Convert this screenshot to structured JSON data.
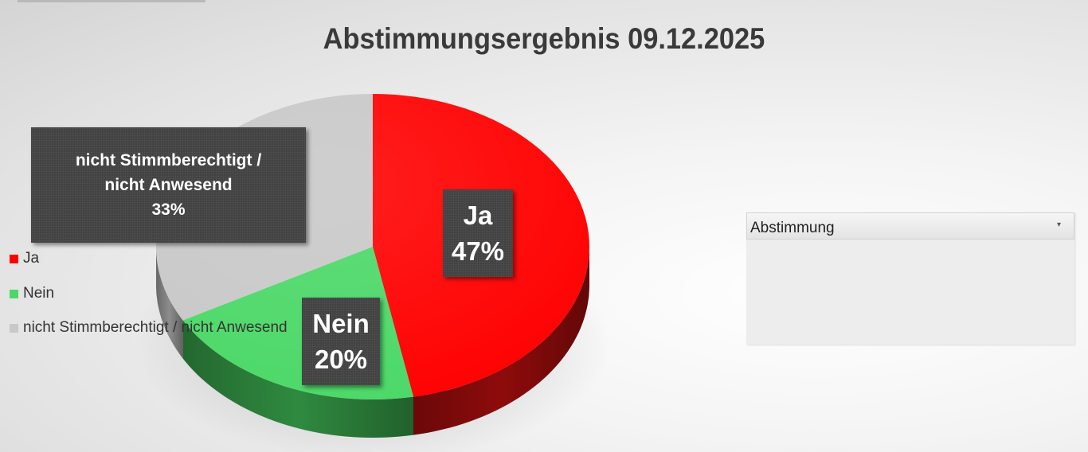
{
  "chart_data": {
    "type": "pie",
    "title": "Abstimmungsergebnis 09.12.2025",
    "slices": [
      {
        "name": "Ja",
        "value": 47,
        "label": "47%",
        "color": "#ff0000",
        "side": "#8e0b0b"
      },
      {
        "name": "Nein",
        "value": 20,
        "label": "20%",
        "color": "#4bd867",
        "side": "#2f8a3f"
      },
      {
        "name": "nicht Stimmberechtigt / nicht Anwesend",
        "value": 33,
        "label": "33%",
        "color": "#c8c8c8",
        "side": "#8c8c8c"
      }
    ],
    "data_labels": {
      "ja": {
        "name": "Ja",
        "pct": "47%"
      },
      "nein": {
        "name": "Nein",
        "pct": "20%"
      },
      "grey": {
        "line1": "nicht Stimmberechtigt /",
        "line2": "nicht Anwesend",
        "pct": "33%"
      }
    },
    "legend": {
      "placement": "right",
      "header": "Abstimmung",
      "arrow": "▾",
      "items": [
        {
          "name": "Ja",
          "color": "#ff0000"
        },
        {
          "name": "Nein",
          "color": "#4bd867"
        },
        {
          "name": "nicht Stimmberechtigt / nicht Anwesend",
          "color": "#c8c8c8"
        }
      ]
    }
  }
}
